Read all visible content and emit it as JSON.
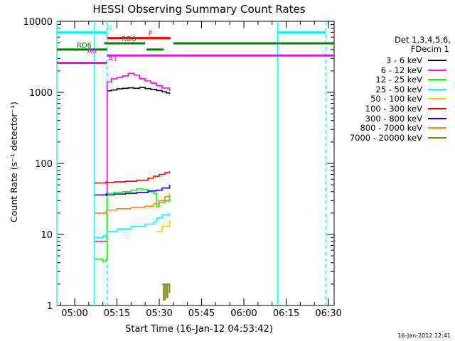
{
  "chart_data": {
    "type": "line",
    "title": "HESSI Observing Summary Count Rates",
    "xlabel": "Start Time (16-Jan-12 04:53:42)",
    "ylabel": "Count Rate (s⁻¹ detector⁻¹)",
    "ylog": true,
    "ylim": [
      1,
      10000
    ],
    "xlim": [
      "04:53:42",
      "06:32:00"
    ],
    "xticks": [
      "05:00",
      "05:15",
      "05:30",
      "05:45",
      "06:00",
      "06:15",
      "06:30"
    ],
    "yticks": [
      "1",
      "10",
      "100",
      "1000",
      "10000"
    ],
    "legend_header": [
      "Det 1,3,4,5,6,",
      "FDecim 1"
    ],
    "legend_position": "right",
    "series": [
      {
        "name": "3 - 6 keV",
        "color": "#000000",
        "x": [
          "05:11:30",
          "05:13:00",
          "05:15:00",
          "05:17:00",
          "05:19:00",
          "05:21:00",
          "05:23:00",
          "05:25:00",
          "05:27:00",
          "05:29:00",
          "05:31:00",
          "05:32:30",
          "05:33:40"
        ],
        "y": [
          1050,
          1080,
          1120,
          1140,
          1160,
          1140,
          1170,
          1130,
          1100,
          1060,
          1020,
          980,
          950
        ]
      },
      {
        "name": "6 - 12 keV",
        "color": "#ff00ff",
        "x": [
          "05:07:00",
          "05:10:00",
          "05:11:10",
          "05:11:30",
          "05:13:00",
          "05:15:00",
          "05:17:00",
          "05:19:00",
          "05:21:00",
          "05:23:00",
          "05:25:00",
          "05:27:00",
          "05:29:00",
          "05:31:00",
          "05:33:40"
        ],
        "y": [
          8,
          8,
          8,
          1400,
          1550,
          1620,
          1700,
          1850,
          1750,
          1550,
          1450,
          1350,
          1250,
          1150,
          1050
        ]
      },
      {
        "name": "12 - 25 keV",
        "color": "#00ff00",
        "x": [
          "05:07:00",
          "05:10:00",
          "05:11:10",
          "05:11:30",
          "05:14:00",
          "05:17:00",
          "05:20:00",
          "05:22:00",
          "05:24:00",
          "05:26:00",
          "05:28:00",
          "05:29:00",
          "05:30:00",
          "05:32:00",
          "05:33:40"
        ],
        "y": [
          4.5,
          4.2,
          4.5,
          38,
          39,
          40,
          42,
          44,
          43,
          40,
          38,
          25,
          28,
          30,
          33
        ]
      },
      {
        "name": "25 - 50 keV",
        "color": "#00ffff",
        "x": [
          "05:07:00",
          "05:10:00",
          "05:11:10",
          "05:11:30",
          "05:15:00",
          "05:20:00",
          "05:25:00",
          "05:28:00",
          "05:29:00",
          "05:31:00",
          "05:33:40"
        ],
        "y": [
          9,
          9.5,
          10,
          11,
          12,
          13,
          14,
          15,
          17,
          19,
          20
        ]
      },
      {
        "name": "50 - 100 keV",
        "color": "#ffcc00",
        "x": [
          "05:29:00",
          "05:31:00",
          "05:33:40"
        ],
        "y": [
          11,
          13,
          16
        ]
      },
      {
        "name": "100 - 300 keV",
        "color": "#ff0000",
        "x": [
          "05:07:00",
          "05:11:10",
          "05:11:30",
          "05:14:00",
          "05:18:00",
          "05:22:00",
          "05:26:00",
          "05:28:00",
          "05:30:00",
          "05:32:00",
          "05:33:40"
        ],
        "y": [
          53,
          55,
          54,
          55,
          56,
          58,
          62,
          66,
          70,
          74,
          78
        ]
      },
      {
        "name": "300 - 800 keV",
        "color": "#0000ff",
        "x": [
          "05:07:00",
          "05:11:10",
          "05:11:30",
          "05:14:00",
          "05:18:00",
          "05:22:00",
          "05:26:00",
          "05:29:00",
          "05:31:00",
          "05:33:40"
        ],
        "y": [
          36,
          37,
          36,
          37,
          38,
          39,
          41,
          42,
          45,
          50
        ]
      },
      {
        "name": "800 - 7000 keV",
        "color": "#ff8800",
        "x": [
          "05:07:00",
          "05:11:10",
          "05:11:30",
          "05:15:00",
          "05:20:00",
          "05:25:00",
          "05:28:00",
          "05:30:00",
          "05:32:00",
          "05:33:40"
        ],
        "y": [
          20,
          21,
          22,
          23,
          24,
          25,
          27,
          30,
          34,
          37
        ]
      },
      {
        "name": "7000 - 20000 keV",
        "color": "#808000",
        "x": [
          "05:31:00",
          "05:31:30",
          "05:32:00",
          "05:32:30",
          "05:33:00",
          "05:33:40"
        ],
        "y": [
          2,
          1.2,
          2,
          1.3,
          2,
          1.5
        ]
      }
    ],
    "flag_segments": [
      {
        "label": "N",
        "color": "#00ffff",
        "y": 7000,
        "segments": [
          [
            "04:53:42",
            "05:11:30"
          ],
          [
            "06:12:00",
            "06:29:00"
          ]
        ]
      },
      {
        "label": "F",
        "color": "#ff0000",
        "y": 5800,
        "segments": [
          [
            "05:11:30",
            "05:34:00"
          ]
        ]
      },
      {
        "label": "RD0",
        "color": "#008000",
        "y": 4900,
        "segments": [
          [
            "05:10:30",
            "05:25:00"
          ],
          [
            "05:35:00",
            "06:32:00"
          ]
        ]
      },
      {
        "label": "RD6",
        "color": "#008000",
        "y": 4000,
        "segments": [
          [
            "04:53:42",
            "05:11:30"
          ],
          [
            "05:25:30",
            "05:31:30"
          ]
        ]
      },
      {
        "label": "A0",
        "color": "#ff00ff",
        "y": 3300,
        "segments": [
          [
            "05:11:30",
            "06:32:00"
          ]
        ]
      },
      {
        "label": "A1",
        "color": "#ff00ff",
        "y": 2600,
        "segments": [
          [
            "04:53:42",
            "05:11:30"
          ]
        ]
      }
    ],
    "vertical_markers": [
      {
        "x": "04:53:42",
        "color": "#00ffff",
        "style": "solid"
      },
      {
        "x": "05:07:00",
        "color": "#00ffff",
        "style": "solid"
      },
      {
        "x": "05:11:30",
        "color": "#00ffff",
        "style": "dashed"
      },
      {
        "x": "06:12:00",
        "color": "#00ffff",
        "style": "solid"
      },
      {
        "x": "06:29:00",
        "color": "#00ffff",
        "style": "dashed"
      }
    ]
  },
  "footer_stamp": "16-Jan-2012 12:41"
}
